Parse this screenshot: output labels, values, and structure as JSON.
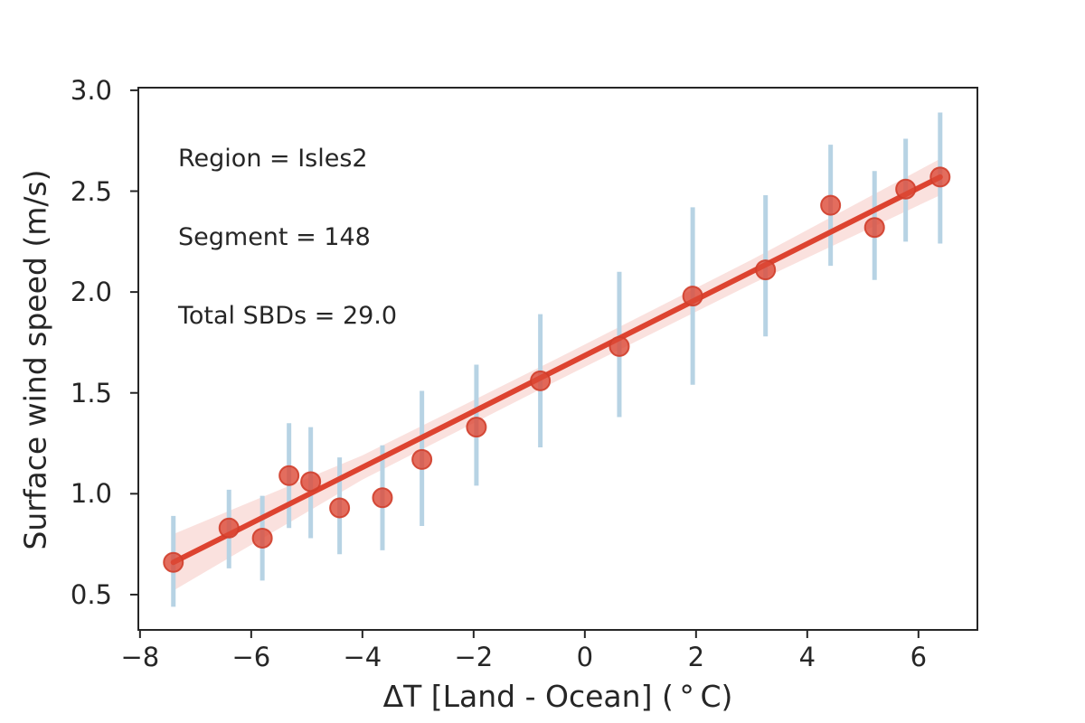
{
  "chart_data": {
    "type": "scatter",
    "title": "",
    "xlabel": "ΔT [Land - Ocean] ( ° C)",
    "ylabel": "Surface wind speed (m/s)",
    "annotation": [
      "Region = Isles2",
      "Segment = 148",
      "Total SBDs = 29.0"
    ],
    "xlim": [
      -8.03,
      7.06
    ],
    "ylim": [
      0.325,
      3.013
    ],
    "grid": false,
    "legend": null,
    "x_ticks": {
      "values": [
        -8,
        -6,
        -4,
        -2,
        0,
        2,
        4,
        6
      ],
      "labels": [
        "−8",
        "−6",
        "−4",
        "−2",
        "0",
        "2",
        "4",
        "6"
      ]
    },
    "y_ticks": {
      "values": [
        0.5,
        1.0,
        1.5,
        2.0,
        2.5,
        3.0
      ],
      "labels": [
        "0.5",
        "1.0",
        "1.5",
        "2.0",
        "2.5",
        "3.0"
      ]
    },
    "points": [
      {
        "x": -7.4,
        "y": 0.66,
        "err_lo": 0.44,
        "err_hi": 0.89
      },
      {
        "x": -6.4,
        "y": 0.83,
        "err_lo": 0.63,
        "err_hi": 1.02
      },
      {
        "x": -5.8,
        "y": 0.78,
        "err_lo": 0.57,
        "err_hi": 0.99
      },
      {
        "x": -5.32,
        "y": 1.09,
        "err_lo": 0.83,
        "err_hi": 1.35
      },
      {
        "x": -4.93,
        "y": 1.06,
        "err_lo": 0.78,
        "err_hi": 1.33
      },
      {
        "x": -4.41,
        "y": 0.93,
        "err_lo": 0.7,
        "err_hi": 1.18
      },
      {
        "x": -3.64,
        "y": 0.98,
        "err_lo": 0.72,
        "err_hi": 1.24
      },
      {
        "x": -2.93,
        "y": 1.17,
        "err_lo": 0.84,
        "err_hi": 1.51
      },
      {
        "x": -1.95,
        "y": 1.33,
        "err_lo": 1.04,
        "err_hi": 1.64
      },
      {
        "x": -0.8,
        "y": 1.56,
        "err_lo": 1.23,
        "err_hi": 1.89
      },
      {
        "x": 0.62,
        "y": 1.73,
        "err_lo": 1.38,
        "err_hi": 2.1
      },
      {
        "x": 1.94,
        "y": 1.98,
        "err_lo": 1.54,
        "err_hi": 2.42
      },
      {
        "x": 3.25,
        "y": 2.11,
        "err_lo": 1.78,
        "err_hi": 2.48
      },
      {
        "x": 4.42,
        "y": 2.43,
        "err_lo": 2.13,
        "err_hi": 2.73
      },
      {
        "x": 5.21,
        "y": 2.32,
        "err_lo": 2.06,
        "err_hi": 2.6
      },
      {
        "x": 5.77,
        "y": 2.51,
        "err_lo": 2.25,
        "err_hi": 2.76
      },
      {
        "x": 6.39,
        "y": 2.57,
        "err_lo": 2.24,
        "err_hi": 2.89
      }
    ],
    "regression_line": {
      "x1": -7.4,
      "y1": 0.66,
      "x2": 6.39,
      "y2": 2.57
    },
    "ci_band": {
      "x": [
        -7.4,
        -4.0,
        -0.5,
        3.0,
        6.39
      ],
      "hi": [
        0.8,
        1.19,
        1.67,
        2.16,
        2.66
      ],
      "lo": [
        0.52,
        1.07,
        1.56,
        2.04,
        2.48
      ]
    },
    "colors": {
      "marker_fill": "#dc4936",
      "marker_edge": "#d03e2b",
      "regression_line": "#dd4330",
      "ci_band": "#dd4330",
      "ci_band_alpha": 0.16,
      "error_bar": "#b7d3e4",
      "spine": "#262626",
      "text": "#262626"
    }
  }
}
